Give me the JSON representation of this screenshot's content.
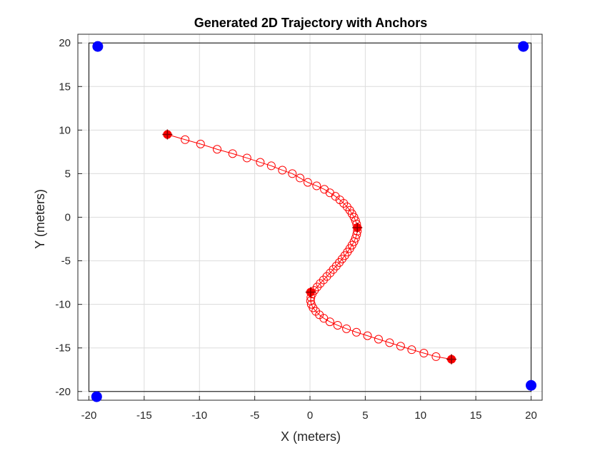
{
  "chart_data": {
    "type": "scatter",
    "title": "Generated 2D Trajectory with Anchors",
    "xlabel": "X (meters)",
    "ylabel": "Y (meters)",
    "xlim": [
      -21,
      21
    ],
    "ylim": [
      -21,
      21
    ],
    "xticks": [
      -20,
      -15,
      -10,
      -5,
      0,
      5,
      10,
      15,
      20
    ],
    "yticks": [
      -20,
      -15,
      -10,
      -5,
      0,
      5,
      10,
      15,
      20
    ],
    "xtick_labels": [
      "-20",
      "-15",
      "-10",
      "-5",
      "0",
      "5",
      "10",
      "15",
      "20"
    ],
    "ytick_labels": [
      "-20",
      "-15",
      "-10",
      "-5",
      "0",
      "5",
      "10",
      "15",
      "20"
    ],
    "grid": true,
    "boundary": {
      "x": [
        -20,
        20
      ],
      "y": [
        -20,
        20
      ]
    },
    "series": [
      {
        "role": "anchors",
        "marker": "filled-circle",
        "color": "#0000ff",
        "points": [
          [
            -19.2,
            19.6
          ],
          [
            19.3,
            19.6
          ],
          [
            -19.3,
            -20.6
          ],
          [
            20.0,
            -19.3
          ]
        ]
      },
      {
        "role": "trajectory",
        "marker": "open-circle",
        "line": true,
        "color": "#ff0000",
        "points": [
          [
            -12.9,
            9.5
          ],
          [
            -11.3,
            8.9
          ],
          [
            -9.9,
            8.4
          ],
          [
            -8.4,
            7.8
          ],
          [
            -7.0,
            7.3
          ],
          [
            -5.7,
            6.8
          ],
          [
            -4.5,
            6.3
          ],
          [
            -3.5,
            5.9
          ],
          [
            -2.5,
            5.4
          ],
          [
            -1.6,
            5.0
          ],
          [
            -0.9,
            4.5
          ],
          [
            -0.2,
            4.0
          ],
          [
            0.6,
            3.6
          ],
          [
            1.3,
            3.2
          ],
          [
            1.8,
            2.8
          ],
          [
            2.3,
            2.4
          ],
          [
            2.7,
            2.0
          ],
          [
            3.05,
            1.6
          ],
          [
            3.35,
            1.2
          ],
          [
            3.6,
            0.8
          ],
          [
            3.8,
            0.4
          ],
          [
            3.98,
            0.0
          ],
          [
            4.12,
            -0.4
          ],
          [
            4.22,
            -0.8
          ],
          [
            4.28,
            -1.2
          ],
          [
            4.28,
            -1.6
          ],
          [
            4.22,
            -2.0
          ],
          [
            4.12,
            -2.4
          ],
          [
            3.98,
            -2.8
          ],
          [
            3.8,
            -3.2
          ],
          [
            3.6,
            -3.6
          ],
          [
            3.38,
            -4.0
          ],
          [
            3.15,
            -4.4
          ],
          [
            2.9,
            -4.8
          ],
          [
            2.65,
            -5.2
          ],
          [
            2.38,
            -5.6
          ],
          [
            2.1,
            -6.0
          ],
          [
            1.82,
            -6.4
          ],
          [
            1.52,
            -6.8
          ],
          [
            1.22,
            -7.2
          ],
          [
            0.92,
            -7.6
          ],
          [
            0.65,
            -8.0
          ],
          [
            0.4,
            -8.4
          ],
          [
            0.2,
            -8.8
          ],
          [
            0.08,
            -9.2
          ],
          [
            0.05,
            -9.6
          ],
          [
            0.12,
            -10.0
          ],
          [
            0.28,
            -10.4
          ],
          [
            0.52,
            -10.8
          ],
          [
            0.85,
            -11.2
          ],
          [
            1.25,
            -11.6
          ],
          [
            1.8,
            -12.0
          ],
          [
            2.5,
            -12.4
          ],
          [
            3.3,
            -12.8
          ],
          [
            4.2,
            -13.2
          ],
          [
            5.2,
            -13.6
          ],
          [
            6.2,
            -14.0
          ],
          [
            7.2,
            -14.4
          ],
          [
            8.2,
            -14.8
          ],
          [
            9.2,
            -15.2
          ],
          [
            10.3,
            -15.6
          ],
          [
            11.4,
            -16.0
          ],
          [
            12.8,
            -16.3
          ]
        ]
      },
      {
        "role": "waypoints",
        "marker": "plus-circle",
        "color": "#ff0000",
        "points": [
          [
            -12.9,
            9.5
          ],
          [
            4.28,
            -1.2
          ],
          [
            0.05,
            -8.6
          ],
          [
            12.8,
            -16.3
          ]
        ]
      }
    ]
  }
}
